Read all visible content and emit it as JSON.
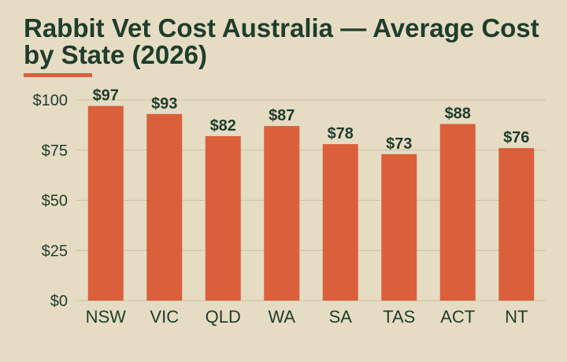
{
  "chart_data": {
    "type": "bar",
    "title": "Rabbit Vet Cost Australia — Average Cost by State (2026)",
    "xlabel": "",
    "ylabel": "",
    "categories": [
      "NSW",
      "VIC",
      "QLD",
      "WA",
      "SA",
      "TAS",
      "ACT",
      "NT"
    ],
    "values": [
      97,
      93,
      82,
      87,
      78,
      73,
      88,
      76
    ],
    "data_labels": [
      "$97",
      "$93",
      "$82",
      "$87",
      "$78",
      "$73",
      "$88",
      "$76"
    ],
    "ylim": [
      0,
      100
    ],
    "yticks": [
      0,
      25,
      50,
      75,
      100
    ],
    "ytick_labels": [
      "$0",
      "$25",
      "$50",
      "$75",
      "$100"
    ],
    "grid": "horizontal",
    "legend": "none",
    "colors": {
      "bar": "#d9603b",
      "background": "#e6dcc4",
      "text": "#1f3d2b",
      "grid": "#c9bfa8",
      "accent_underline": "#d9603b"
    }
  }
}
